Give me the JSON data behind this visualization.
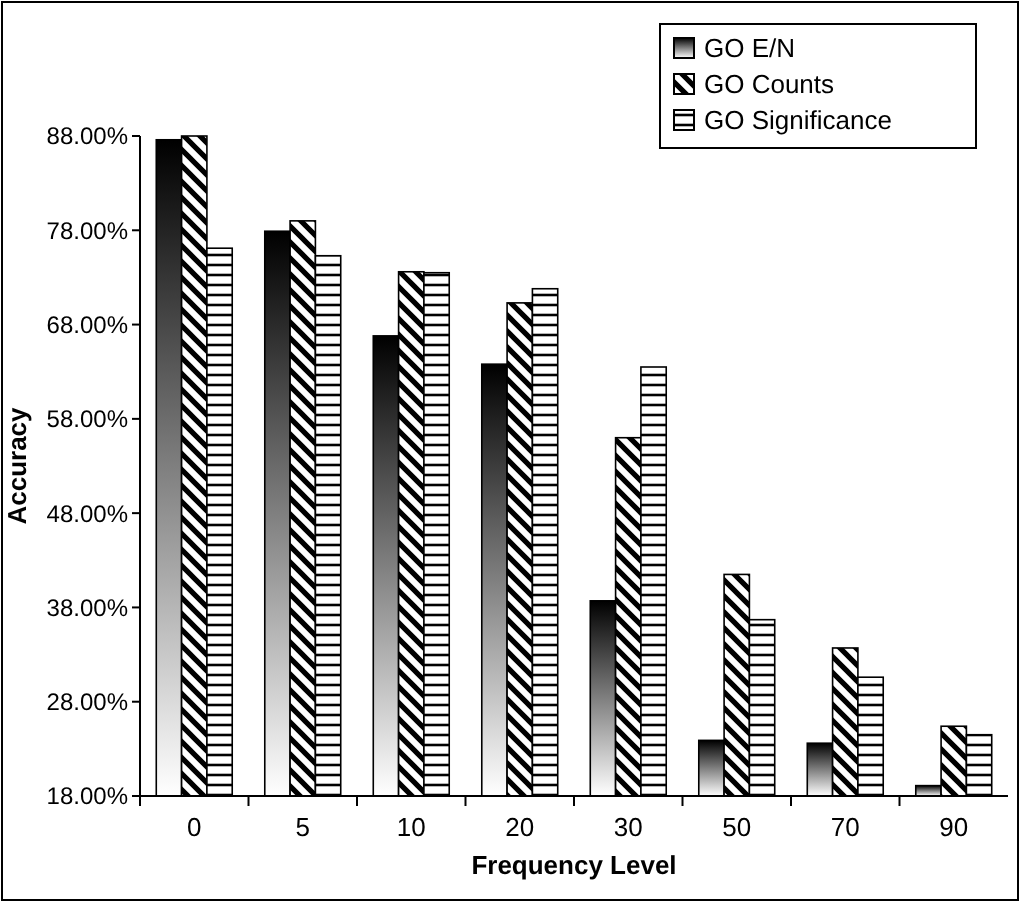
{
  "chart_data": {
    "type": "bar",
    "xlabel": "Frequency Level",
    "ylabel": "Accuracy",
    "categories": [
      "0",
      "5",
      "10",
      "20",
      "30",
      "50",
      "70",
      "90"
    ],
    "series": [
      {
        "name": "GO E/N",
        "color": "#000000",
        "values": [
          87.6,
          77.9,
          66.8,
          63.8,
          38.7,
          23.9,
          23.6,
          19.1
        ]
      },
      {
        "name": "GO Counts",
        "color": "#000000",
        "values": [
          88.0,
          79.0,
          73.6,
          70.3,
          56.0,
          41.5,
          33.7,
          25.4
        ]
      },
      {
        "name": "GO Significance",
        "color": "#000000",
        "values": [
          76.1,
          75.3,
          73.5,
          71.8,
          63.5,
          36.7,
          30.6,
          24.5
        ]
      }
    ],
    "ylim": [
      18,
      88
    ],
    "yticks": [
      {
        "value": 18,
        "label": "18.00%"
      },
      {
        "value": 28,
        "label": "28.00%"
      },
      {
        "value": 38,
        "label": "38.00%"
      },
      {
        "value": 48,
        "label": "48.00%"
      },
      {
        "value": 58,
        "label": "58.00%"
      },
      {
        "value": 68,
        "label": "68.00%"
      },
      {
        "value": 78,
        "label": "78.00%"
      },
      {
        "value": 88,
        "label": "88.00%"
      }
    ],
    "legend": "top right",
    "grid": false
  }
}
